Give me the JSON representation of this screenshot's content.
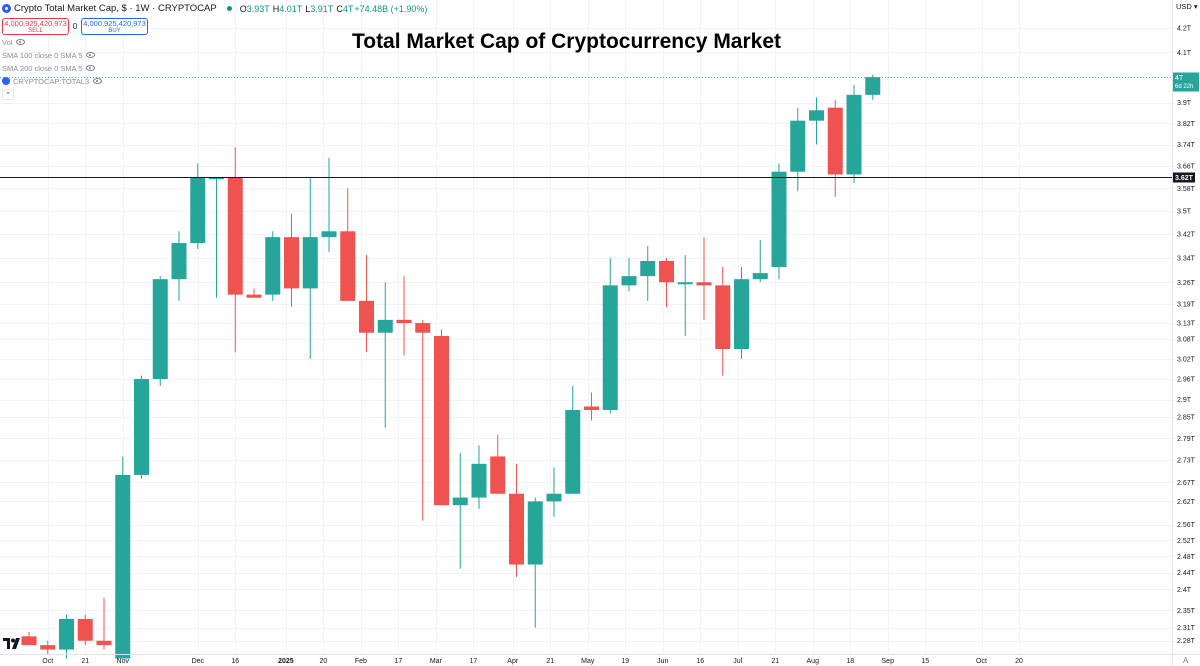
{
  "header": {
    "symbol_title": "Crypto Total Market Cap, $ · 1W · CRYPTOCAP",
    "ohlc": [
      {
        "label": "O",
        "value": "3.93T"
      },
      {
        "label": "H",
        "value": "4.01T"
      },
      {
        "label": "L",
        "value": "3.91T"
      },
      {
        "label": "C",
        "value": "4T"
      },
      {
        "label": "",
        "value": "+74.48B (+1.90%)"
      }
    ],
    "sell_price": "4,000,925,420,973",
    "sell_label": "SELL",
    "spread": "0",
    "buy_price": "4,000,925,420,973",
    "buy_label": "BUY",
    "indicators": [
      "Vol",
      "SMA 100 close 0 SMA 5",
      "SMA 200 close 0 SMA 5",
      "CRYPTOCAP:TOTAL3"
    ],
    "collapse_glyph": "⌃",
    "currency": "USD ▾",
    "time_end_glyph": "A"
  },
  "chart_data": {
    "type": "candlestick",
    "title": "Total Market Cap of Cryptocurrency Market",
    "y_unit": "T USD",
    "ylim": [
      2.25,
      4.32
    ],
    "y_scale": "log",
    "y_ticks": [
      4.2,
      4.1,
      3.9,
      3.82,
      3.74,
      3.66,
      3.58,
      3.5,
      3.42,
      3.34,
      3.26,
      3.19,
      3.13,
      3.08,
      3.02,
      2.96,
      2.9,
      2.85,
      2.79,
      2.73,
      2.67,
      2.62,
      2.56,
      2.52,
      2.48,
      2.44,
      2.4,
      2.35,
      2.31,
      2.28
    ],
    "y_tick_labels": [
      "4.2T",
      "4.1T",
      "3.9T",
      "3.82T",
      "3.74T",
      "3.66T",
      "3.58T",
      "3.5T",
      "3.42T",
      "3.34T",
      "3.26T",
      "3.19T",
      "3.13T",
      "3.08T",
      "3.02T",
      "2.96T",
      "2.9T",
      "2.85T",
      "2.79T",
      "2.73T",
      "2.67T",
      "2.62T",
      "2.56T",
      "2.52T",
      "2.48T",
      "2.44T",
      "2.4T",
      "2.35T",
      "2.31T",
      "2.28T"
    ],
    "x_labels": [
      {
        "week": -1,
        "label": "Oct",
        "bold": false
      },
      {
        "week": 1,
        "label": "21",
        "bold": false
      },
      {
        "week": 3,
        "label": "Nov",
        "bold": false
      },
      {
        "week": 7,
        "label": "Dec",
        "bold": false
      },
      {
        "week": 9,
        "label": "16",
        "bold": false
      },
      {
        "week": 11.7,
        "label": "2025",
        "bold": true
      },
      {
        "week": 13.7,
        "label": "20",
        "bold": false
      },
      {
        "week": 15.7,
        "label": "Feb",
        "bold": false
      },
      {
        "week": 17.7,
        "label": "17",
        "bold": false
      },
      {
        "week": 19.7,
        "label": "Mar",
        "bold": false
      },
      {
        "week": 21.7,
        "label": "17",
        "bold": false
      },
      {
        "week": 23.8,
        "label": "Apr",
        "bold": false
      },
      {
        "week": 25.8,
        "label": "21",
        "bold": false
      },
      {
        "week": 27.8,
        "label": "May",
        "bold": false
      },
      {
        "week": 29.8,
        "label": "19",
        "bold": false
      },
      {
        "week": 31.8,
        "label": "Jun",
        "bold": false
      },
      {
        "week": 33.8,
        "label": "16",
        "bold": false
      },
      {
        "week": 35.8,
        "label": "Jul",
        "bold": false
      },
      {
        "week": 37.8,
        "label": "21",
        "bold": false
      },
      {
        "week": 39.8,
        "label": "Aug",
        "bold": false
      },
      {
        "week": 41.8,
        "label": "18",
        "bold": false
      },
      {
        "week": 43.8,
        "label": "Sep",
        "bold": false
      },
      {
        "week": 45.8,
        "label": "15",
        "bold": false
      },
      {
        "week": 48.8,
        "label": "Oct",
        "bold": false
      },
      {
        "week": 50.8,
        "label": "20",
        "bold": false
      }
    ],
    "candles": [
      {
        "week": -2,
        "open": 2.29,
        "high": 2.3,
        "low": 2.27,
        "close": 2.27
      },
      {
        "week": -1,
        "open": 2.27,
        "high": 2.28,
        "low": 2.25,
        "close": 2.26
      },
      {
        "week": 0,
        "open": 2.26,
        "high": 2.34,
        "low": 2.24,
        "close": 2.33
      },
      {
        "week": 1,
        "open": 2.33,
        "high": 2.34,
        "low": 2.27,
        "close": 2.28
      },
      {
        "week": 2,
        "open": 2.28,
        "high": 2.38,
        "low": 2.26,
        "close": 2.27
      },
      {
        "week": 3,
        "open": 2.24,
        "high": 2.74,
        "low": 2.24,
        "close": 2.69
      },
      {
        "week": 4,
        "open": 2.69,
        "high": 2.97,
        "low": 2.68,
        "close": 2.96
      },
      {
        "week": 5,
        "open": 2.96,
        "high": 3.28,
        "low": 2.94,
        "close": 3.27
      },
      {
        "week": 6,
        "open": 3.27,
        "high": 3.43,
        "low": 3.2,
        "close": 3.39
      },
      {
        "week": 7,
        "open": 3.39,
        "high": 3.67,
        "low": 3.37,
        "close": 3.62
      },
      {
        "week": 8,
        "open": 3.62,
        "high": 3.62,
        "low": 3.21,
        "close": 3.62
      },
      {
        "week": 9,
        "open": 3.62,
        "high": 3.73,
        "low": 3.04,
        "close": 3.22
      },
      {
        "week": 10,
        "open": 3.22,
        "high": 3.24,
        "low": 3.21,
        "close": 3.21
      },
      {
        "week": 11,
        "open": 3.22,
        "high": 3.43,
        "low": 3.2,
        "close": 3.41
      },
      {
        "week": 12,
        "open": 3.41,
        "high": 3.49,
        "low": 3.18,
        "close": 3.24
      },
      {
        "week": 13,
        "open": 3.24,
        "high": 3.62,
        "low": 3.02,
        "close": 3.41
      },
      {
        "week": 14,
        "open": 3.41,
        "high": 3.69,
        "low": 3.36,
        "close": 3.43
      },
      {
        "week": 15,
        "open": 3.43,
        "high": 3.58,
        "low": 3.21,
        "close": 3.2
      },
      {
        "week": 16,
        "open": 3.2,
        "high": 3.35,
        "low": 3.04,
        "close": 3.1
      },
      {
        "week": 17,
        "open": 3.1,
        "high": 3.26,
        "low": 2.82,
        "close": 3.14
      },
      {
        "week": 18,
        "open": 3.14,
        "high": 3.28,
        "low": 3.03,
        "close": 3.13
      },
      {
        "week": 19,
        "open": 3.13,
        "high": 3.14,
        "low": 2.57,
        "close": 3.1
      },
      {
        "week": 20,
        "open": 3.09,
        "high": 3.11,
        "low": 2.61,
        "close": 2.61
      },
      {
        "week": 21,
        "open": 2.61,
        "high": 2.75,
        "low": 2.45,
        "close": 2.63
      },
      {
        "week": 22,
        "open": 2.63,
        "high": 2.77,
        "low": 2.6,
        "close": 2.72
      },
      {
        "week": 23,
        "open": 2.74,
        "high": 2.8,
        "low": 2.64,
        "close": 2.64
      },
      {
        "week": 24,
        "open": 2.64,
        "high": 2.72,
        "low": 2.43,
        "close": 2.46
      },
      {
        "week": 25,
        "open": 2.46,
        "high": 2.63,
        "low": 2.31,
        "close": 2.62
      },
      {
        "week": 26,
        "open": 2.62,
        "high": 2.71,
        "low": 2.58,
        "close": 2.64
      },
      {
        "week": 27,
        "open": 2.64,
        "high": 2.94,
        "low": 2.64,
        "close": 2.87
      },
      {
        "week": 28,
        "open": 2.88,
        "high": 2.92,
        "low": 2.84,
        "close": 2.87
      },
      {
        "week": 29,
        "open": 2.87,
        "high": 3.34,
        "low": 2.86,
        "close": 3.25
      },
      {
        "week": 30,
        "open": 3.25,
        "high": 3.34,
        "low": 3.23,
        "close": 3.28
      },
      {
        "week": 31,
        "open": 3.28,
        "high": 3.38,
        "low": 3.2,
        "close": 3.33
      },
      {
        "week": 32,
        "open": 3.33,
        "high": 3.34,
        "low": 3.18,
        "close": 3.26
      },
      {
        "week": 33,
        "open": 3.26,
        "high": 3.35,
        "low": 3.09,
        "close": 3.26
      },
      {
        "week": 34,
        "open": 3.26,
        "high": 3.41,
        "low": 3.14,
        "close": 3.25
      },
      {
        "week": 35,
        "open": 3.25,
        "high": 3.31,
        "low": 2.97,
        "close": 3.05
      },
      {
        "week": 36,
        "open": 3.05,
        "high": 3.31,
        "low": 3.02,
        "close": 3.27
      },
      {
        "week": 37,
        "open": 3.27,
        "high": 3.4,
        "low": 3.26,
        "close": 3.29
      },
      {
        "week": 38,
        "open": 3.31,
        "high": 3.67,
        "low": 3.27,
        "close": 3.64
      },
      {
        "week": 39,
        "open": 3.64,
        "high": 3.88,
        "low": 3.57,
        "close": 3.83
      },
      {
        "week": 40,
        "open": 3.83,
        "high": 3.92,
        "low": 3.74,
        "close": 3.87
      },
      {
        "week": 41,
        "open": 3.88,
        "high": 3.91,
        "low": 3.55,
        "close": 3.63
      },
      {
        "week": 42,
        "open": 3.63,
        "high": 3.97,
        "low": 3.6,
        "close": 3.93
      },
      {
        "week": 43,
        "open": 3.93,
        "high": 4.01,
        "low": 3.91,
        "close": 4.0
      }
    ],
    "last_price_line": {
      "value": 4.0,
      "label": "4T",
      "countdown": "6d 22h"
    },
    "horizontal_line": {
      "value": 3.62,
      "label": "3.62T"
    },
    "colors": {
      "up": "#26a69a",
      "down": "#ef5350",
      "grid": "#f0f3fa",
      "axis_text": "#131722",
      "line": "#131722",
      "last_line": "#26a69a"
    }
  }
}
